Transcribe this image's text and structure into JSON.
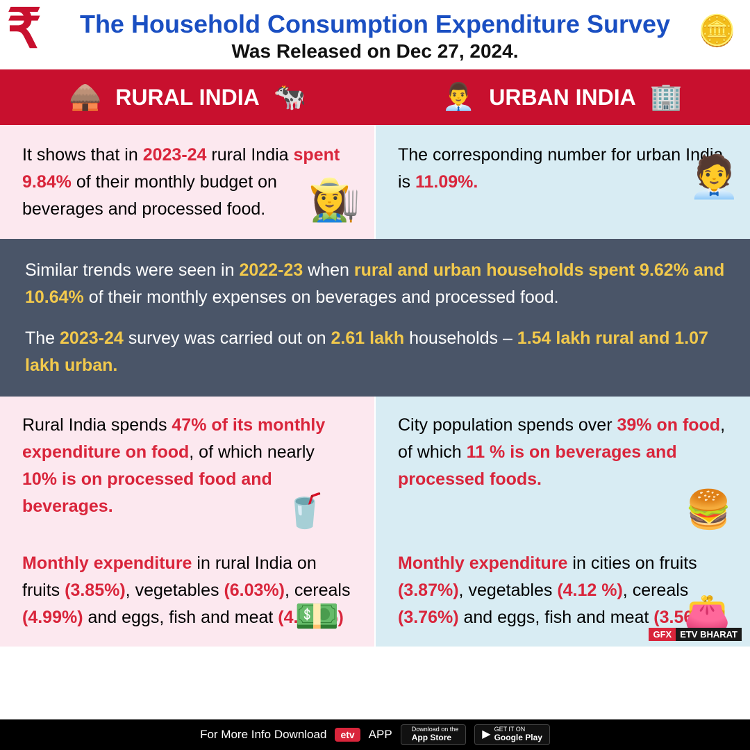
{
  "header": {
    "title": "The Household Consumption Expenditure Survey",
    "subtitle": "Was Released on Dec 27, 2024.",
    "rupee_icon": "₹",
    "coins_icon": "🪙"
  },
  "band": {
    "rural_label": "RURAL INDIA",
    "urban_label": "URBAN INDIA",
    "rural_icon_left": "🛖",
    "rural_icon_right": "🐄",
    "urban_icon_left": "👨‍💼",
    "urban_icon_right": "🏢"
  },
  "row1": {
    "rural_pre": "It shows that in ",
    "rural_year": "2023-24",
    "rural_mid1": " rural India ",
    "rural_spent": "spent 9.84%",
    "rural_post": " of their monthly budget on beverages and processed food.",
    "rural_icon": "👩‍🌾",
    "urban_pre": "The corresponding number for urban India is ",
    "urban_val": "11.09%.",
    "urban_icon": "🧑‍💼"
  },
  "midblock": {
    "p1_a": "Similar trends were seen in ",
    "p1_year": "2022-23",
    "p1_b": " when ",
    "p1_hl": "rural and urban households spent 9.62% and 10.64%",
    "p1_c": " of their monthly expenses on beverages and processed food.",
    "p2_a": "The ",
    "p2_year": "2023-24",
    "p2_b": " survey was carried out on ",
    "p2_total": "2.61 lakh",
    "p2_c": " households – ",
    "p2_split": "1.54 lakh rural and 1.07 lakh urban."
  },
  "row2": {
    "rural_pre": "Rural India spends ",
    "rural_food": "47% of its monthly expenditure on food",
    "rural_mid": ", of which nearly ",
    "rural_proc": "10% is on processed food and beverages.",
    "rural_icon": "🥤",
    "urban_pre": "City population spends over ",
    "urban_food": "39% on food",
    "urban_mid": ", of which ",
    "urban_proc": "11 % is on beverages and processed foods.",
    "urban_icon": "🍔"
  },
  "row3": {
    "rural_lead": "Monthly expenditure",
    "rural_a": " in rural India on fruits ",
    "rural_fruits": "(3.85%)",
    "rural_b": ", vegetables ",
    "rural_veg": "(6.03%)",
    "rural_c": ", cereals ",
    "rural_cer": "(4.99%)",
    "rural_d": " and eggs, fish and meat ",
    "rural_meat": "(4.92 %)",
    "rural_icon": "💵",
    "urban_lead": "Monthly expenditure",
    "urban_a": " in cities on fruits ",
    "urban_fruits": "(3.87%)",
    "urban_b": ", vegetables ",
    "urban_veg": "(4.12 %)",
    "urban_c": ", cereals ",
    "urban_cer": "(3.76%)",
    "urban_d": " and eggs, fish and meat ",
    "urban_meat": "(3.56%)",
    "urban_icon": "👛",
    "gfx1": "GFX",
    "gfx2": "ETV BHARAT"
  },
  "footer": {
    "text": "For More Info Download",
    "app_label": "APP",
    "brand_icon": "etv",
    "appstore_top": "Download on the",
    "appstore_bot": "App Store",
    "gplay_top": "GET IT ON",
    "gplay_bot": "Google Play"
  },
  "colors": {
    "red": "#c8102e",
    "blue": "#1a4fc2",
    "dark": "#4a5568",
    "rural_bg": "#fce8ef",
    "urban_bg": "#d8ecf3",
    "yellow": "#f2c94c"
  }
}
